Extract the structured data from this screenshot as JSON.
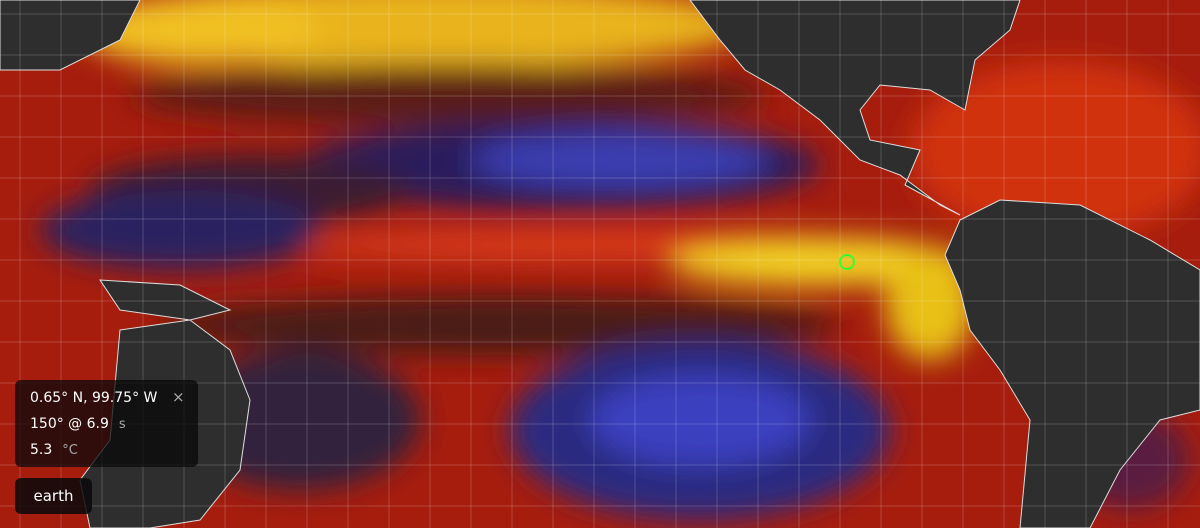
{
  "location": {
    "coordinates": "0.65° N, 99.75° W",
    "close": "×"
  },
  "readings": [
    {
      "value": "150° @ 6.9",
      "unit": "s"
    },
    {
      "value": "5.3",
      "unit": "°C"
    }
  ],
  "menu": {
    "label": "earth"
  }
}
